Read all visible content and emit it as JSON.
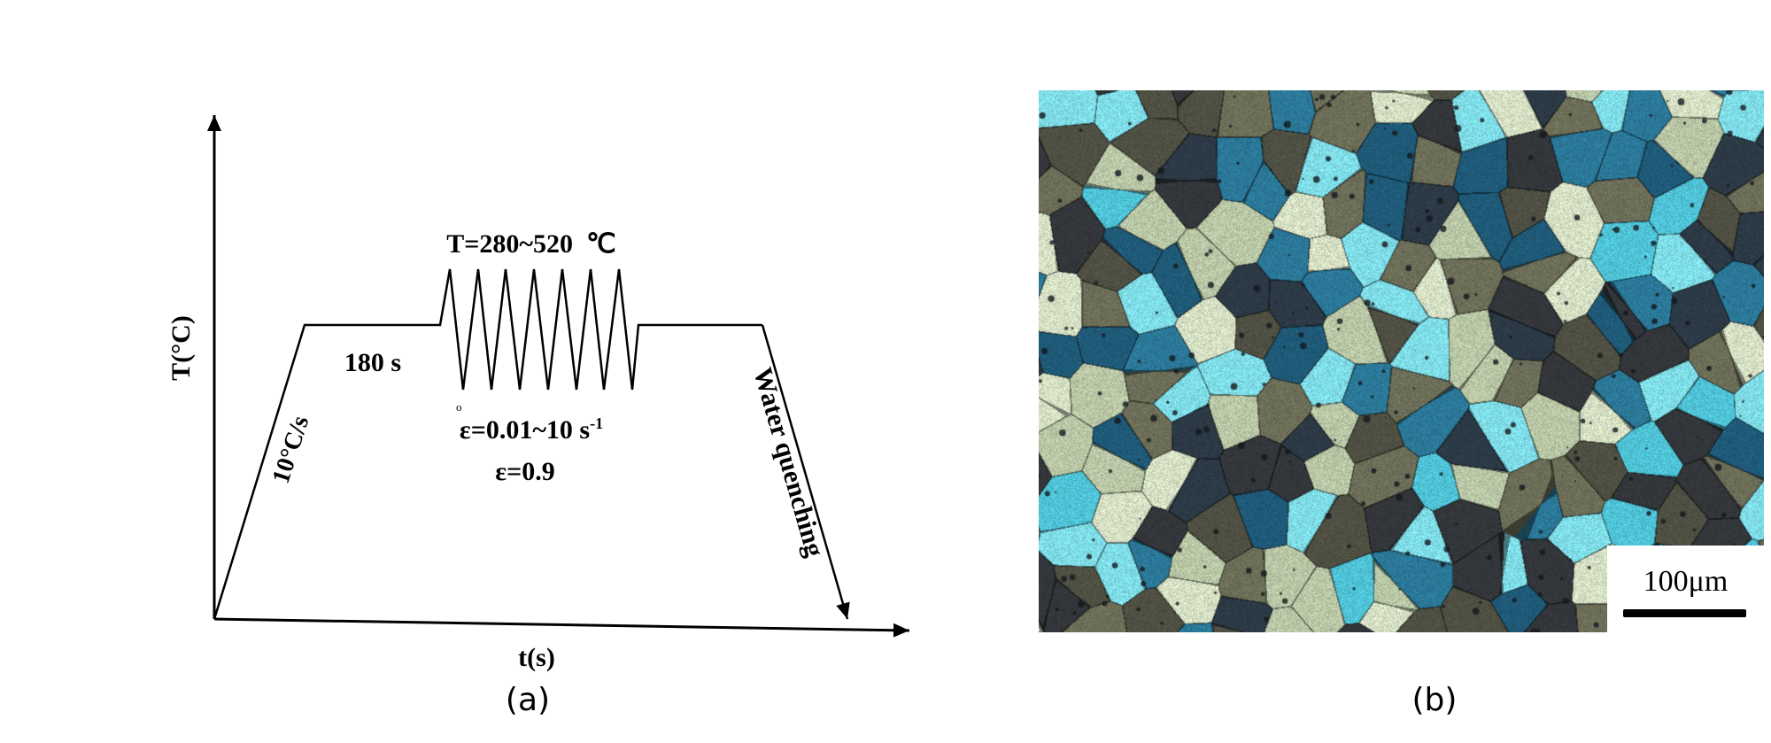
{
  "panel_a": {
    "y_axis_label": "T(°C)",
    "x_axis_label": "t(s)",
    "heating_rate": "10°C/s",
    "hold_time": "180 s",
    "temperature_range": "T=280~520  ℃",
    "strain_rate": "ε=0.01~10 s",
    "strain_rate_exponent": "-1",
    "strain_rate_dot": "o",
    "strain": "ε=0.9",
    "cooling": "Water quenching",
    "caption": "(a)"
  },
  "panel_b": {
    "scale_bar_label": "100μm",
    "caption": "(b)",
    "grain_colors": [
      "#2c3a46",
      "#4f5043",
      "#6c6e58",
      "#b9c7a6",
      "#d6e0c4",
      "#4fc3d6",
      "#7fdde8",
      "#2b7898",
      "#1f5a78",
      "#33363a"
    ]
  }
}
